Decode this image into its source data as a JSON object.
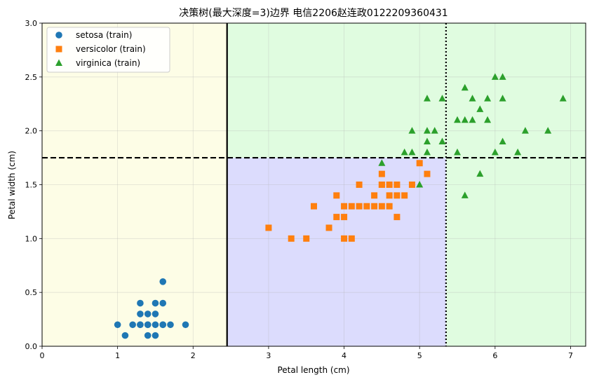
{
  "chart_data": {
    "type": "scatter",
    "title": "决策树(最大深度=3)边界  电信2206赵连政0122209360431",
    "xlabel": "Petal length (cm)",
    "ylabel": "Petal width (cm)",
    "xlim": [
      0,
      7.2
    ],
    "ylim": [
      0,
      3.0
    ],
    "xticks": [
      "0",
      "1",
      "2",
      "3",
      "4",
      "5",
      "6",
      "7"
    ],
    "yticks": [
      "0.0",
      "0.5",
      "1.0",
      "1.5",
      "2.0",
      "2.5",
      "3.0"
    ],
    "grid": true,
    "legend_position": "top-left",
    "regions": [
      {
        "class": "setosa",
        "x": [
          0,
          2.45
        ],
        "y": [
          0,
          3.0
        ],
        "color": "#fdfde6"
      },
      {
        "class": "versicolor",
        "x": [
          2.45,
          5.35
        ],
        "y": [
          0,
          1.75
        ],
        "color": "#dcdcfd"
      },
      {
        "class": "virginica",
        "x": [
          2.45,
          5.35
        ],
        "y": [
          1.75,
          3.0
        ],
        "color": "#e0fce0"
      },
      {
        "class": "virginica",
        "x": [
          5.35,
          7.2
        ],
        "y": [
          0,
          3.0
        ],
        "color": "#e0fce0"
      }
    ],
    "splits": [
      {
        "orientation": "vertical",
        "value": 2.45,
        "style": "solid"
      },
      {
        "orientation": "horizontal",
        "value": 1.75,
        "style": "dashed"
      },
      {
        "orientation": "vertical",
        "value": 5.35,
        "style": "dotted"
      }
    ],
    "series": [
      {
        "name": "setosa (train)",
        "marker": "circle",
        "color": "#1f77b4",
        "x": [
          1.0,
          1.1,
          1.2,
          1.3,
          1.3,
          1.3,
          1.4,
          1.4,
          1.4,
          1.5,
          1.5,
          1.5,
          1.5,
          1.6,
          1.6,
          1.6,
          1.6,
          1.7,
          1.9,
          1.4,
          1.3
        ],
        "y": [
          0.2,
          0.1,
          0.2,
          0.2,
          0.3,
          0.4,
          0.1,
          0.2,
          0.3,
          0.1,
          0.2,
          0.3,
          0.4,
          0.2,
          0.4,
          0.6,
          0.2,
          0.2,
          0.2,
          0.2,
          0.2
        ]
      },
      {
        "name": "versicolor (train)",
        "marker": "square",
        "color": "#ff7f0e",
        "x": [
          3.0,
          3.3,
          3.5,
          3.6,
          3.8,
          3.9,
          3.9,
          4.0,
          4.0,
          4.0,
          4.1,
          4.1,
          4.2,
          4.2,
          4.3,
          4.4,
          4.4,
          4.5,
          4.5,
          4.5,
          4.5,
          4.6,
          4.6,
          4.6,
          4.7,
          4.7,
          4.7,
          4.8,
          4.9,
          5.0,
          5.1
        ],
        "y": [
          1.1,
          1.0,
          1.0,
          1.3,
          1.1,
          1.2,
          1.4,
          1.0,
          1.2,
          1.3,
          1.0,
          1.3,
          1.3,
          1.5,
          1.3,
          1.3,
          1.4,
          1.3,
          1.5,
          1.5,
          1.6,
          1.3,
          1.4,
          1.5,
          1.2,
          1.4,
          1.5,
          1.4,
          1.5,
          1.7,
          1.6
        ]
      },
      {
        "name": "virginica (train)",
        "marker": "triangle",
        "color": "#2ca02c",
        "x": [
          4.5,
          4.8,
          4.9,
          4.9,
          5.0,
          5.1,
          5.1,
          5.1,
          5.1,
          5.2,
          5.3,
          5.3,
          5.5,
          5.5,
          5.6,
          5.6,
          5.6,
          5.7,
          5.7,
          5.8,
          5.8,
          5.9,
          5.9,
          6.0,
          6.0,
          6.1,
          6.1,
          6.1,
          6.3,
          6.4,
          6.7,
          6.9
        ],
        "y": [
          1.7,
          1.8,
          1.8,
          2.0,
          1.5,
          1.8,
          1.9,
          2.0,
          2.3,
          2.0,
          1.9,
          2.3,
          1.8,
          2.1,
          1.4,
          2.1,
          2.4,
          2.1,
          2.3,
          1.6,
          2.2,
          2.1,
          2.3,
          1.8,
          2.5,
          1.9,
          2.3,
          2.5,
          1.8,
          2.0,
          2.0,
          2.3
        ]
      }
    ]
  }
}
